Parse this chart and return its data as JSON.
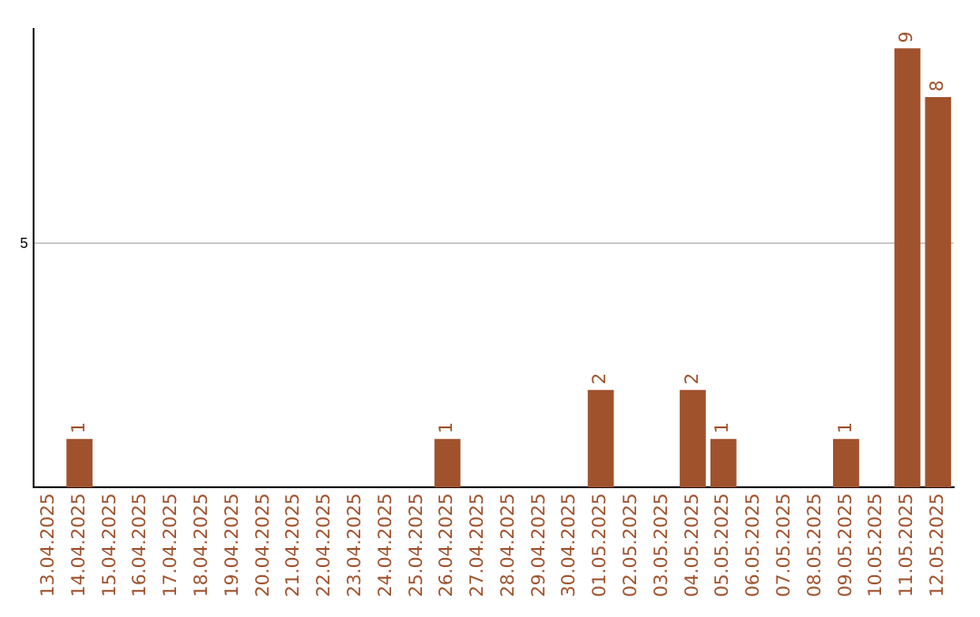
{
  "chart_data": {
    "type": "bar",
    "categories": [
      "13.04.2025",
      "14.04.2025",
      "15.04.2025",
      "16.04.2025",
      "17.04.2025",
      "18.04.2025",
      "19.04.2025",
      "20.04.2025",
      "21.04.2025",
      "22.04.2025",
      "23.04.2025",
      "24.04.2025",
      "25.04.2025",
      "26.04.2025",
      "27.04.2025",
      "28.04.2025",
      "29.04.2025",
      "30.04.2025",
      "01.05.2025",
      "02.05.2025",
      "03.05.2025",
      "04.05.2025",
      "05.05.2025",
      "06.05.2025",
      "07.05.2025",
      "08.05.2025",
      "09.05.2025",
      "10.05.2025",
      "11.05.2025",
      "12.05.2025"
    ],
    "values": [
      0,
      1,
      0,
      0,
      0,
      0,
      0,
      0,
      0,
      0,
      0,
      0,
      0,
      1,
      0,
      0,
      0,
      0,
      2,
      0,
      0,
      2,
      1,
      0,
      0,
      0,
      1,
      0,
      9,
      8
    ],
    "value_labels": [
      null,
      "1",
      null,
      null,
      null,
      null,
      null,
      null,
      null,
      null,
      null,
      null,
      null,
      "1",
      null,
      null,
      null,
      null,
      "2",
      null,
      null,
      "2",
      "1",
      null,
      null,
      null,
      "1",
      null,
      "9",
      "8"
    ],
    "color": "#a0522d",
    "ylim": [
      0,
      9.4
    ],
    "yticks": [
      5
    ],
    "grid": "y",
    "legend": false
  }
}
